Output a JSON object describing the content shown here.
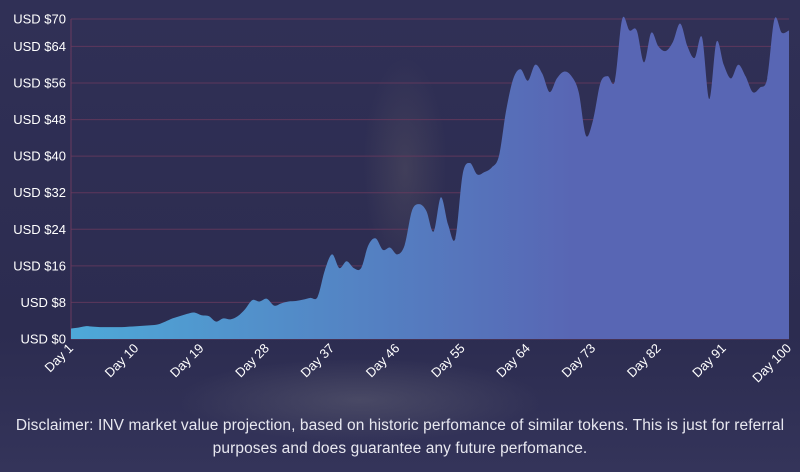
{
  "chart_data": {
    "type": "area",
    "title": "",
    "xlabel": "",
    "ylabel": "",
    "ylim": [
      0,
      70
    ],
    "y_ticks": [
      0,
      8,
      16,
      24,
      32,
      40,
      48,
      56,
      64,
      70
    ],
    "y_tick_labels": [
      "USD $0",
      "USD $8",
      "USD $16",
      "USD $24",
      "USD $32",
      "USD $40",
      "USD $48",
      "USD $56",
      "USD $64",
      "USD $70"
    ],
    "x_tick_days": [
      1,
      10,
      19,
      28,
      37,
      46,
      55,
      64,
      73,
      82,
      91,
      100
    ],
    "x_tick_labels": [
      "Day 1",
      "Day 10",
      "Day 19",
      "Day 28",
      "Day 37",
      "Day 46",
      "Day 55",
      "Day 64",
      "Day 73",
      "Day 82",
      "Day 91",
      "Day 100"
    ],
    "xlim": [
      1,
      100
    ],
    "grid": true,
    "series": [
      {
        "name": "INV market value projection",
        "values": [
          2.3,
          2.5,
          2.8,
          2.7,
          2.6,
          2.6,
          2.6,
          2.6,
          2.7,
          2.8,
          2.9,
          3.0,
          3.2,
          3.8,
          4.5,
          5.0,
          5.5,
          5.8,
          5.2,
          5.0,
          3.8,
          4.5,
          4.3,
          5.0,
          6.5,
          8.5,
          8.2,
          8.8,
          7.3,
          7.8,
          8.2,
          8.3,
          8.6,
          9.0,
          9.2,
          15.0,
          18.5,
          15.5,
          17.0,
          15.5,
          15.5,
          20.5,
          22.0,
          19.5,
          20.0,
          18.5,
          20.5,
          28.0,
          29.5,
          28.0,
          23.5,
          31.0,
          25.0,
          22.0,
          36.0,
          38.5,
          36.0,
          36.5,
          37.5,
          40.0,
          50.0,
          57.0,
          59.0,
          56.5,
          60.0,
          58.0,
          54.0,
          57.0,
          58.5,
          57.5,
          54.0,
          44.5,
          48.0,
          56.0,
          57.5,
          56.5,
          70.0,
          67.5,
          67.5,
          60.5,
          67.0,
          64.0,
          63.0,
          65.0,
          69.0,
          64.0,
          61.5,
          66.0,
          52.5,
          65.0,
          60.0,
          57.0,
          60.0,
          57.5,
          54.0,
          55.0,
          57.0,
          70.0,
          67.0,
          67.5
        ]
      }
    ],
    "colors": {
      "fill_start": "#4ea9d8",
      "fill_end": "#5866b4",
      "grid": "#6a3a5e",
      "text": "#ffffff"
    }
  },
  "disclaimer": "Disclaimer: INV market value projection, based on historic perfomance of similar tokens. This is just for referral purposes and does guarantee any future perfomance."
}
